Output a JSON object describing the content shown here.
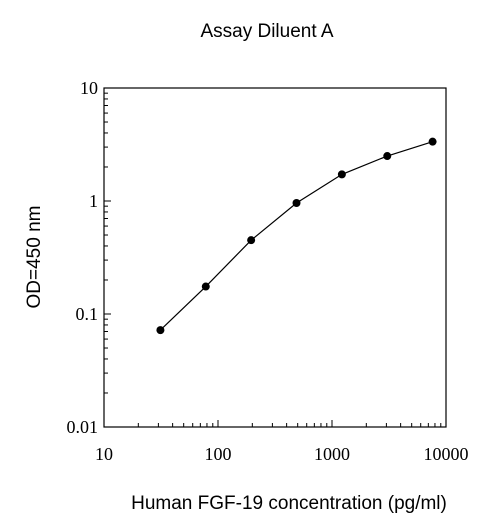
{
  "chart_data": {
    "type": "line",
    "title": "Assay Diluent A",
    "xlabel": "Human FGF-19 concentration (pg/ml)",
    "ylabel": "OD=450 nm",
    "x_scale": "log",
    "y_scale": "log",
    "xlim": [
      10,
      10000
    ],
    "ylim": [
      0.01,
      10
    ],
    "x_ticks": [
      10,
      100,
      1000,
      10000
    ],
    "x_tick_labels": [
      "10",
      "100",
      "1000",
      "10000"
    ],
    "y_ticks": [
      0.01,
      0.1,
      1,
      10
    ],
    "y_tick_labels": [
      "0.01",
      "0.1",
      "1",
      "10"
    ],
    "grid": false,
    "legend": "none",
    "series": [
      {
        "x": [
          31.25,
          78.125,
          195.3,
          488.3,
          1220.7,
          3051.8,
          7629.4
        ],
        "y": [
          0.072,
          0.175,
          0.45,
          0.96,
          1.72,
          2.5,
          3.35
        ]
      }
    ],
    "colors": {
      "line": "#000000",
      "marker": "#000000",
      "axis": "#000000"
    }
  }
}
